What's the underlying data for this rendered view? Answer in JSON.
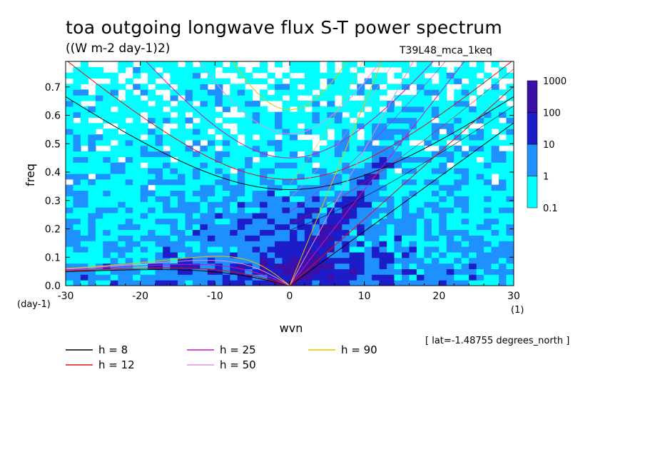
{
  "chart_data": {
    "type": "heatmap",
    "title": "toa outgoing longwave flux S-T power spectrum",
    "units": "((W m-2 day-1)2)",
    "run_label": "T39L48_mca_1keq",
    "xlabel": "wvn",
    "x_units": "(1)",
    "ylabel": "freq",
    "y_units": "(day-1)",
    "xlim": [
      -30,
      30
    ],
    "ylim": [
      0,
      0.79
    ],
    "x_ticks": [
      -30,
      -20,
      -10,
      0,
      10,
      20,
      30
    ],
    "x_tick_labels": [
      "-30",
      "-20",
      "-10",
      "0",
      "10",
      "20",
      "30"
    ],
    "y_ticks": [
      0.0,
      0.1,
      0.2,
      0.3,
      0.4,
      0.5,
      0.6,
      0.7
    ],
    "y_tick_labels": [
      "0.0",
      "0.1",
      "0.2",
      "0.3",
      "0.4",
      "0.5",
      "0.6",
      "0.7"
    ],
    "info_label": "[ lat=-1.48755 degrees_north ]",
    "colorbar": {
      "levels": [
        "0.1",
        "1",
        "10",
        "100",
        "1000"
      ],
      "colors": [
        "#00FFFF",
        "#1E90FF",
        "#1C1CC8",
        "#3A10A8"
      ]
    },
    "dispersion_curves": [
      {
        "label": "h =  8",
        "h": 8,
        "color": "#000000"
      },
      {
        "label": "h = 12",
        "h": 12,
        "color": "#E01010"
      },
      {
        "label": "h = 25",
        "h": 25,
        "color": "#D010C0"
      },
      {
        "label": "h = 50",
        "h": 50,
        "color": "#E090E0"
      },
      {
        "label": "h = 90",
        "h": 90,
        "color": "#E8C000"
      }
    ]
  }
}
